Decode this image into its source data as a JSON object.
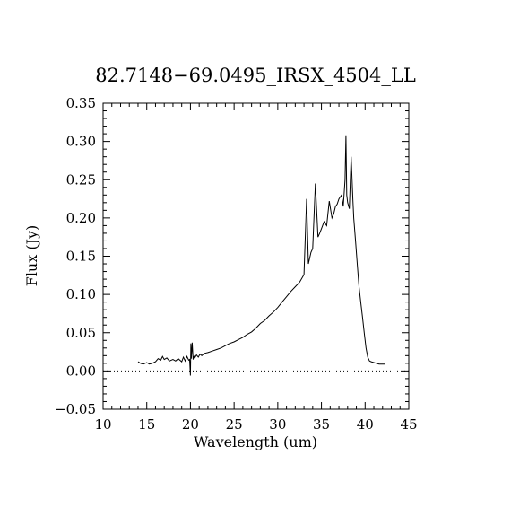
{
  "chart_data": {
    "type": "line",
    "title": "82.7148−69.0495_IRSX_4504_LL",
    "xlabel": "Wavelength (um)",
    "ylabel": "Flux (Jy)",
    "xlim": [
      10,
      45
    ],
    "ylim": [
      -0.05,
      0.35
    ],
    "x_ticks": [
      10,
      15,
      20,
      25,
      30,
      35,
      40,
      45
    ],
    "x_tick_labels": [
      "10",
      "15",
      "20",
      "25",
      "30",
      "35",
      "40",
      "45"
    ],
    "y_ticks": [
      -0.05,
      0.0,
      0.05,
      0.1,
      0.15,
      0.2,
      0.25,
      0.3,
      0.35
    ],
    "y_tick_labels": [
      "−0.05",
      "0.00",
      "0.05",
      "0.10",
      "0.15",
      "0.20",
      "0.25",
      "0.30",
      "0.35"
    ],
    "reference_line": {
      "y": 0.0,
      "style": "dotted"
    },
    "grid": false,
    "series": [
      {
        "x": [
          14.0,
          14.3,
          14.6,
          15.0,
          15.3,
          15.6,
          16.0,
          16.3,
          16.6,
          16.8,
          17.0,
          17.3,
          17.6,
          18.0,
          18.3,
          18.6,
          19.0,
          19.2,
          19.4,
          19.6,
          19.8,
          19.9,
          20.0,
          20.05,
          20.1,
          20.2,
          20.3,
          20.4,
          20.5,
          20.7,
          20.9,
          21.1,
          21.3,
          21.6,
          22.0,
          22.5,
          23.0,
          23.5,
          24.0,
          24.5,
          25.0,
          25.5,
          26.0,
          26.5,
          27.0,
          27.5,
          28.0,
          28.5,
          29.0,
          29.5,
          30.0,
          30.5,
          31.0,
          31.5,
          32.0,
          32.5,
          33.0,
          33.3,
          33.5,
          33.8,
          34.0,
          34.3,
          34.6,
          34.8,
          35.0,
          35.3,
          35.6,
          35.9,
          36.2,
          36.4,
          36.6,
          36.8,
          37.0,
          37.3,
          37.5,
          37.7,
          37.8,
          37.9,
          38.0,
          38.2,
          38.4,
          38.6,
          38.7,
          38.9,
          39.1,
          39.3,
          39.5,
          39.7,
          39.9,
          40.1,
          40.3,
          40.5,
          40.7,
          41.0,
          41.3,
          41.6,
          42.0,
          42.3
        ],
        "y": [
          0.012,
          0.01,
          0.009,
          0.011,
          0.009,
          0.01,
          0.012,
          0.016,
          0.014,
          0.019,
          0.015,
          0.017,
          0.013,
          0.015,
          0.013,
          0.016,
          0.012,
          0.018,
          0.013,
          0.019,
          0.014,
          0.015,
          -0.006,
          0.036,
          0.016,
          0.037,
          0.015,
          0.019,
          0.017,
          0.021,
          0.018,
          0.022,
          0.02,
          0.023,
          0.024,
          0.026,
          0.028,
          0.03,
          0.033,
          0.036,
          0.038,
          0.041,
          0.044,
          0.048,
          0.051,
          0.056,
          0.062,
          0.066,
          0.072,
          0.077,
          0.083,
          0.09,
          0.097,
          0.104,
          0.11,
          0.116,
          0.126,
          0.225,
          0.14,
          0.155,
          0.16,
          0.245,
          0.175,
          0.18,
          0.186,
          0.195,
          0.19,
          0.222,
          0.2,
          0.205,
          0.215,
          0.218,
          0.225,
          0.23,
          0.215,
          0.25,
          0.308,
          0.23,
          0.22,
          0.212,
          0.28,
          0.225,
          0.2,
          0.17,
          0.14,
          0.11,
          0.09,
          0.07,
          0.05,
          0.03,
          0.018,
          0.013,
          0.012,
          0.011,
          0.01,
          0.009,
          0.009,
          0.009
        ]
      }
    ]
  }
}
